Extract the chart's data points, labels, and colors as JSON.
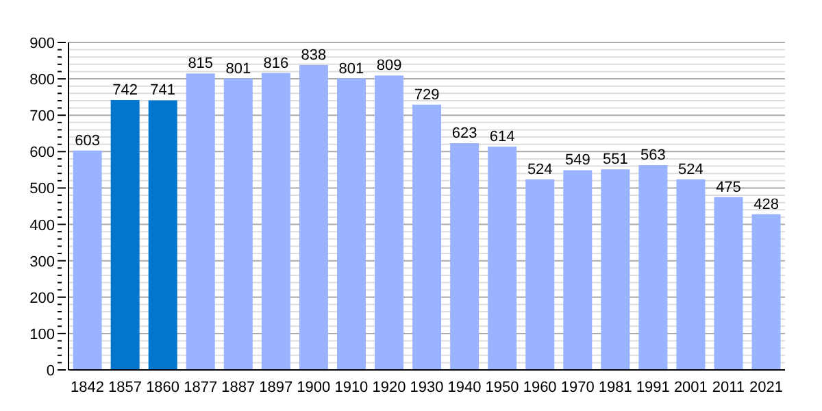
{
  "chart_data": {
    "type": "bar",
    "categories": [
      "1842",
      "1857",
      "1860",
      "1877",
      "1887",
      "1897",
      "1900",
      "1910",
      "1920",
      "1930",
      "1940",
      "1950",
      "1960",
      "1970",
      "1981",
      "1991",
      "2001",
      "2011",
      "2021"
    ],
    "values": [
      603,
      742,
      741,
      815,
      801,
      816,
      838,
      801,
      809,
      729,
      623,
      614,
      524,
      549,
      551,
      563,
      524,
      475,
      428
    ],
    "colors": [
      "#99b3ff",
      "#0077cc",
      "#0077cc",
      "#99b3ff",
      "#99b3ff",
      "#99b3ff",
      "#99b3ff",
      "#99b3ff",
      "#99b3ff",
      "#99b3ff",
      "#99b3ff",
      "#99b3ff",
      "#99b3ff",
      "#99b3ff",
      "#99b3ff",
      "#99b3ff",
      "#99b3ff",
      "#99b3ff",
      "#99b3ff"
    ],
    "data_labels": true,
    "ylim": [
      0,
      900
    ],
    "yticks": [
      0,
      {
        "value": 20,
        "label": null
      },
      {
        "value": 40,
        "label": null
      },
      {
        "value": 60,
        "label": null
      },
      {
        "value": 80,
        "label": null
      },
      100,
      {
        "value": 120,
        "label": null
      },
      {
        "value": 140,
        "label": null
      },
      {
        "value": 160,
        "label": null
      },
      {
        "value": 180,
        "label": null
      },
      200,
      {
        "value": 220,
        "label": null
      },
      {
        "value": 240,
        "label": null
      },
      {
        "value": 260,
        "label": null
      },
      {
        "value": 280,
        "label": null
      },
      300,
      {
        "value": 320,
        "label": null
      },
      {
        "value": 340,
        "label": null
      },
      {
        "value": 360,
        "label": null
      },
      {
        "value": 380,
        "label": null
      },
      400,
      {
        "value": 420,
        "label": null
      },
      {
        "value": 440,
        "label": null
      },
      {
        "value": 460,
        "label": null
      },
      {
        "value": 480,
        "label": null
      },
      500,
      {
        "value": 520,
        "label": null
      },
      {
        "value": 540,
        "label": null
      },
      {
        "value": 560,
        "label": null
      },
      {
        "value": 580,
        "label": null
      },
      600,
      {
        "value": 620,
        "label": null
      },
      {
        "value": 640,
        "label": null
      },
      {
        "value": 660,
        "label": null
      },
      {
        "value": 680,
        "label": null
      },
      700,
      {
        "value": 720,
        "label": null
      },
      {
        "value": 740,
        "label": null
      },
      {
        "value": 760,
        "label": null
      },
      {
        "value": 780,
        "label": null
      },
      800,
      {
        "value": 820,
        "label": null
      },
      {
        "value": 840,
        "label": null
      },
      {
        "value": 860,
        "label": null
      },
      {
        "value": 880,
        "label": null
      },
      900
    ],
    "grid": "y"
  }
}
